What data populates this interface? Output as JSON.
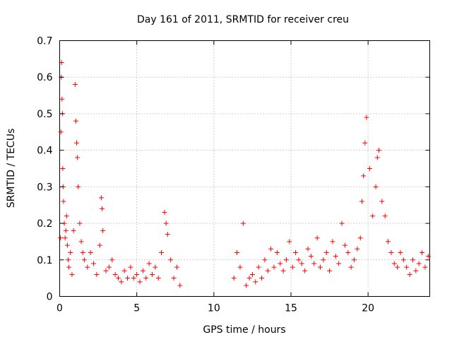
{
  "chart_data": {
    "type": "scatter",
    "title": "Day 161 of 2011, SRMTID for receiver creu",
    "xlabel": "GPS time / hours",
    "ylabel": "SRMTID / TECUs",
    "xlim": [
      0,
      24
    ],
    "ylim": [
      0,
      0.7
    ],
    "xticks": [
      0,
      5,
      10,
      15,
      20
    ],
    "yticks": [
      0,
      0.1,
      0.2,
      0.3,
      0.4,
      0.5,
      0.6,
      0.7
    ],
    "xtick_labels": [
      "0",
      "5",
      "10",
      "15",
      "20"
    ],
    "ytick_labels": [
      "0",
      "0.1",
      "0.2",
      "0.3",
      "0.4",
      "0.5",
      "0.6",
      "0.7"
    ],
    "grid": true,
    "marker": "plus",
    "color": "#ff0000",
    "series": [
      {
        "x": [
          0.05,
          0.08,
          0.1,
          0.12,
          0.15,
          0.18,
          0.2,
          0.22,
          0.25,
          0.3,
          0.35,
          0.4,
          0.45,
          0.5,
          0.55,
          0.6,
          0.7,
          0.8,
          0.9,
          1.0,
          1.05,
          1.1,
          1.15,
          1.2,
          1.3,
          1.4,
          1.5,
          1.6,
          1.8,
          2.0,
          2.2,
          2.4,
          2.6,
          2.7,
          2.75,
          2.8,
          3.0,
          3.2,
          3.4,
          3.6,
          3.8,
          4.0,
          4.2,
          4.4,
          4.6,
          4.8,
          5.0,
          5.2,
          5.4,
          5.6,
          5.8,
          6.0,
          6.2,
          6.4,
          6.6,
          6.8,
          6.9,
          7.0,
          7.2,
          7.4,
          7.6,
          7.8,
          11.3,
          11.5,
          11.7,
          11.9,
          12.1,
          12.3,
          12.5,
          12.7,
          12.9,
          13.1,
          13.3,
          13.5,
          13.7,
          13.9,
          14.1,
          14.3,
          14.5,
          14.7,
          14.9,
          15.1,
          15.3,
          15.5,
          15.7,
          15.9,
          16.1,
          16.3,
          16.5,
          16.7,
          16.9,
          17.1,
          17.3,
          17.5,
          17.7,
          17.9,
          18.1,
          18.3,
          18.5,
          18.7,
          18.9,
          19.1,
          19.3,
          19.5,
          19.6,
          19.7,
          19.8,
          19.9,
          20.1,
          20.3,
          20.5,
          20.6,
          20.7,
          20.9,
          21.1,
          21.3,
          21.5,
          21.7,
          21.9,
          22.1,
          22.3,
          22.5,
          22.7,
          22.9,
          23.1,
          23.3,
          23.5,
          23.7,
          23.9
        ],
        "y": [
          0.16,
          0.45,
          0.6,
          0.64,
          0.54,
          0.5,
          0.35,
          0.3,
          0.26,
          0.2,
          0.16,
          0.18,
          0.22,
          0.14,
          0.1,
          0.08,
          0.12,
          0.06,
          0.18,
          0.58,
          0.48,
          0.42,
          0.38,
          0.3,
          0.2,
          0.15,
          0.12,
          0.1,
          0.08,
          0.12,
          0.09,
          0.06,
          0.14,
          0.27,
          0.24,
          0.18,
          0.07,
          0.08,
          0.1,
          0.06,
          0.05,
          0.04,
          0.07,
          0.05,
          0.08,
          0.05,
          0.06,
          0.04,
          0.07,
          0.05,
          0.09,
          0.06,
          0.08,
          0.05,
          0.12,
          0.23,
          0.2,
          0.17,
          0.1,
          0.05,
          0.08,
          0.03,
          0.05,
          0.12,
          0.08,
          0.2,
          0.03,
          0.05,
          0.06,
          0.04,
          0.08,
          0.05,
          0.1,
          0.07,
          0.13,
          0.08,
          0.12,
          0.09,
          0.07,
          0.1,
          0.15,
          0.08,
          0.12,
          0.1,
          0.09,
          0.07,
          0.13,
          0.11,
          0.09,
          0.16,
          0.08,
          0.1,
          0.12,
          0.07,
          0.15,
          0.11,
          0.09,
          0.2,
          0.14,
          0.12,
          0.08,
          0.1,
          0.13,
          0.16,
          0.26,
          0.33,
          0.42,
          0.49,
          0.35,
          0.22,
          0.3,
          0.38,
          0.4,
          0.26,
          0.22,
          0.15,
          0.12,
          0.09,
          0.08,
          0.12,
          0.1,
          0.08,
          0.06,
          0.1,
          0.07,
          0.09,
          0.12,
          0.08,
          0.11
        ]
      }
    ]
  }
}
